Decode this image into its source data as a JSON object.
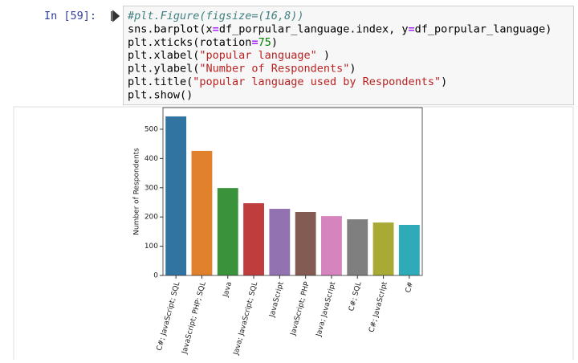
{
  "cell": {
    "prompt": "In [59]:",
    "code": [
      "#plt.Figure(figsize=(16,8))",
      "sns.barplot(x=df_porpular_language.index, y=df_porpular_language)",
      "plt.xticks(rotation=75)",
      "plt.xlabel(\"popular language\" )",
      "plt.ylabel(\"Number of Respondents\")",
      "plt.title(\"popular language used by Respondents\")",
      "plt.show()"
    ]
  },
  "chart_data": {
    "type": "bar",
    "y_label": "Number of Respondents",
    "categories": [
      "C#; JavaScript; SQL",
      "JavaScript; PHP; SQL",
      "Java",
      "Java; JavaScript; SQL",
      "JavaScript",
      "JavaScript; PHP",
      "Java; JavaScript",
      "C#; SQL",
      "C#; JavaScript",
      "C#"
    ],
    "values": [
      544,
      426,
      299,
      247,
      228,
      217,
      203,
      192,
      181,
      173
    ],
    "colors": [
      "#3274a1",
      "#e1812c",
      "#3a923a",
      "#c03d3e",
      "#9372b2",
      "#845b53",
      "#d684bd",
      "#7f7f7f",
      "#a9aa35",
      "#2eaab8"
    ],
    "ylim": [
      0,
      574
    ],
    "yticks": [
      0,
      100,
      200,
      300,
      400,
      500
    ]
  }
}
